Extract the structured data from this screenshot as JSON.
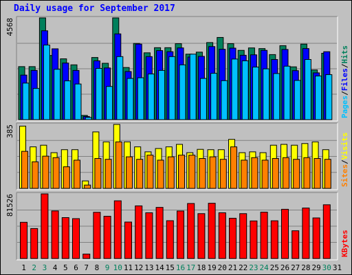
{
  "title": "Daily usage for September 2017",
  "colors": {
    "hits": "#00805c",
    "files": "#0000ff",
    "pages": "#00c0ff",
    "visits": "#ffff00",
    "sites": "#ff8000",
    "kbytes": "#ff0000",
    "weekend_label": "#00805c",
    "weekday_label": "#000000",
    "panel_bg": "#c0c0c0",
    "grid": "#808080"
  },
  "chart_data": [
    {
      "type": "bar",
      "panel": "top",
      "categories": [
        "1",
        "2",
        "3",
        "4",
        "5",
        "6",
        "7",
        "8",
        "9",
        "10",
        "11",
        "12",
        "13",
        "14",
        "15",
        "16",
        "17",
        "18",
        "19",
        "20",
        "21",
        "22",
        "23",
        "24",
        "25",
        "26",
        "27",
        "28",
        "29",
        "30",
        "31"
      ],
      "max_label": "4568",
      "ylim": [
        0,
        4568
      ],
      "legend": [
        "Pages",
        "Files",
        "Hits"
      ],
      "series": [
        {
          "name": "Hits",
          "values": [
            2380,
            2380,
            4568,
            2880,
            2730,
            2460,
            190,
            2790,
            2530,
            4568,
            2340,
            3420,
            3000,
            3230,
            3230,
            3410,
            2940,
            3030,
            3460,
            3690,
            3410,
            3110,
            3220,
            3190,
            2920,
            3320,
            2370,
            3390,
            2230,
            2980,
            0
          ]
        },
        {
          "name": "Files",
          "values": [
            2000,
            2210,
            3990,
            3180,
            2540,
            2210,
            140,
            2640,
            2320,
            3850,
            2160,
            3390,
            2830,
            3100,
            3050,
            3220,
            2810,
            2840,
            3280,
            3160,
            3210,
            2890,
            2910,
            3110,
            2700,
            3150,
            2200,
            3190,
            2100,
            3050,
            0
          ]
        },
        {
          "name": "Pages",
          "values": [
            1640,
            1400,
            3350,
            2260,
            1740,
            1600,
            100,
            2300,
            1490,
            2830,
            1850,
            1880,
            2050,
            2210,
            2830,
            2460,
            2940,
            1850,
            2080,
            1750,
            2720,
            2640,
            2360,
            2280,
            2070,
            2400,
            1760,
            2700,
            1960,
            2020,
            0
          ]
        }
      ]
    },
    {
      "type": "bar",
      "panel": "middle",
      "categories": [
        "1",
        "2",
        "3",
        "4",
        "5",
        "6",
        "7",
        "8",
        "9",
        "10",
        "11",
        "12",
        "13",
        "14",
        "15",
        "16",
        "17",
        "18",
        "19",
        "20",
        "21",
        "22",
        "23",
        "24",
        "25",
        "26",
        "27",
        "28",
        "29",
        "30",
        "31"
      ],
      "max_label": "385",
      "ylim": [
        0,
        385
      ],
      "legend": [
        "Sites",
        "Visits"
      ],
      "series": [
        {
          "name": "Visits",
          "values": [
            375,
            250,
            260,
            215,
            233,
            233,
            45,
            340,
            280,
            385,
            280,
            250,
            220,
            240,
            250,
            265,
            215,
            235,
            233,
            233,
            295,
            215,
            220,
            215,
            260,
            265,
            260,
            270,
            280,
            233,
            0
          ]
        },
        {
          "name": "Sites",
          "values": [
            223,
            160,
            194,
            185,
            130,
            170,
            20,
            180,
            175,
            280,
            190,
            175,
            200,
            170,
            190,
            200,
            200,
            180,
            190,
            175,
            250,
            170,
            185,
            170,
            180,
            185,
            175,
            185,
            180,
            175,
            0
          ]
        }
      ]
    },
    {
      "type": "bar",
      "panel": "bottom",
      "categories": [
        "1",
        "2",
        "3",
        "4",
        "5",
        "6",
        "7",
        "8",
        "9",
        "10",
        "11",
        "12",
        "13",
        "14",
        "15",
        "16",
        "17",
        "18",
        "19",
        "20",
        "21",
        "22",
        "23",
        "24",
        "25",
        "26",
        "27",
        "28",
        "29",
        "30",
        "31"
      ],
      "max_label": "81526",
      "ylim": [
        0,
        81526
      ],
      "legend": [
        "KBytes"
      ],
      "series": [
        {
          "name": "KBytes",
          "values": [
            45700,
            37800,
            81526,
            60000,
            51600,
            50300,
            5600,
            58300,
            53300,
            72800,
            46000,
            66400,
            57700,
            64500,
            47700,
            59900,
            69400,
            56600,
            69700,
            57700,
            50800,
            56600,
            47400,
            58500,
            47600,
            62100,
            35000,
            63700,
            51200,
            67800,
            0
          ]
        }
      ]
    }
  ]
}
